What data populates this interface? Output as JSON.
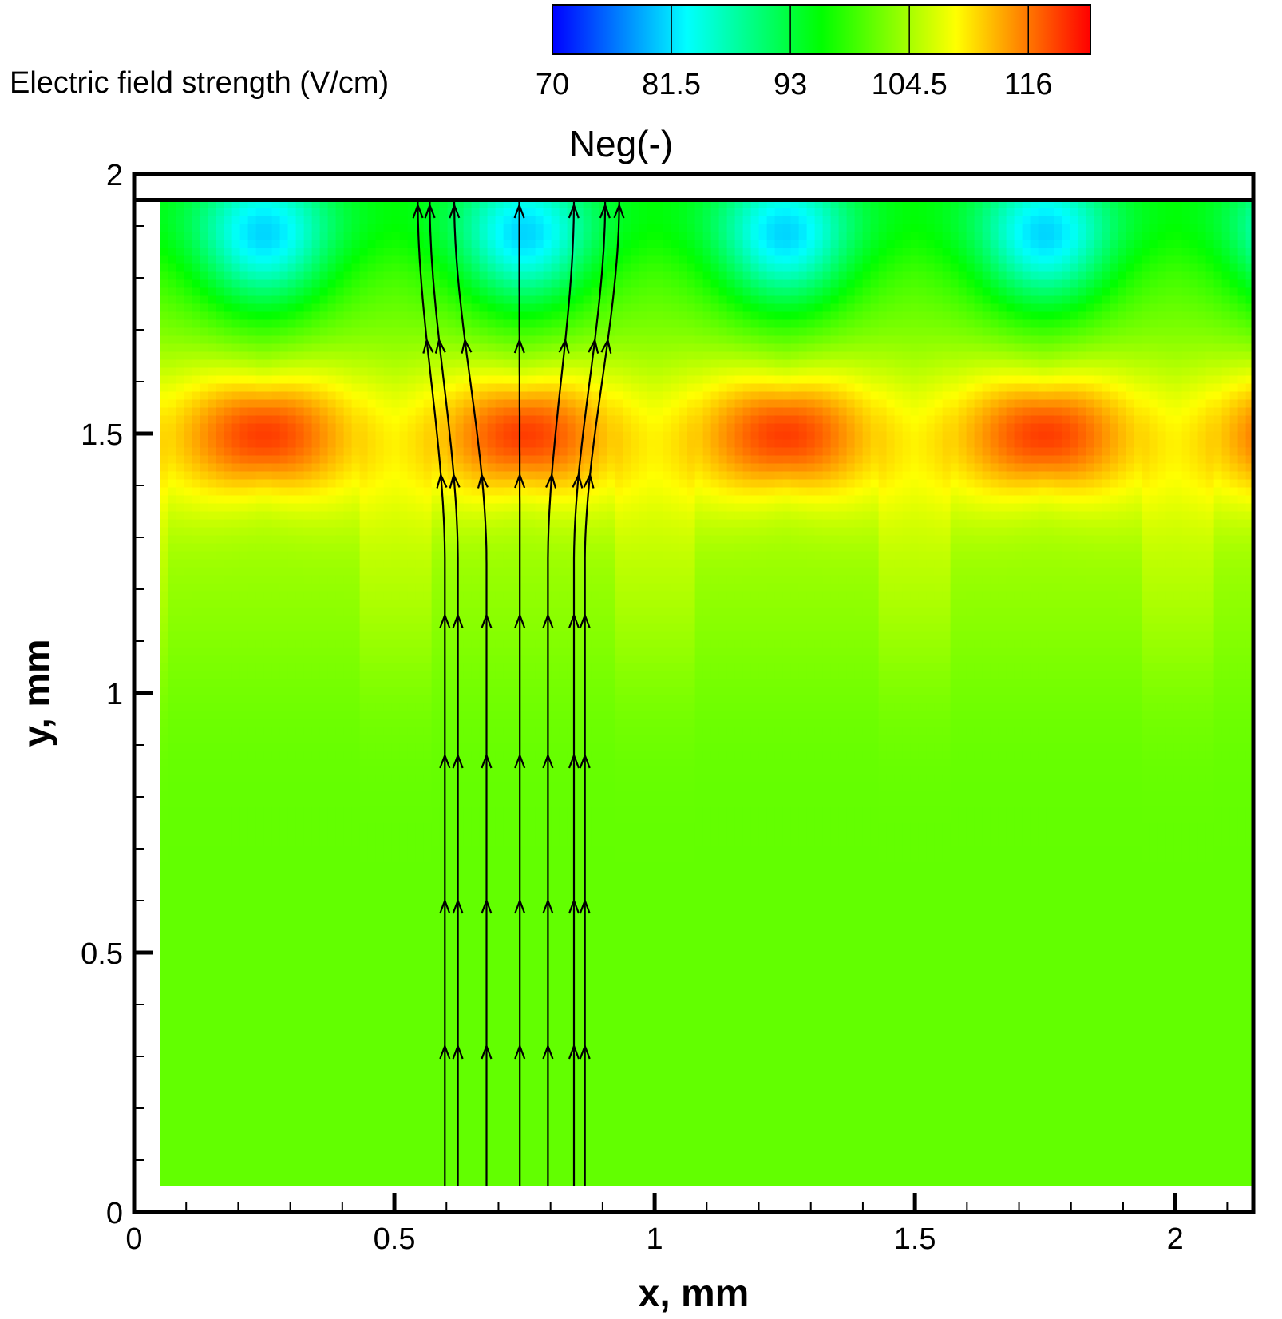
{
  "chart_data": {
    "type": "heatmap",
    "title": "Neg(-)",
    "xlabel": "x, mm",
    "ylabel": "y, mm",
    "xlim": [
      0,
      2.15
    ],
    "ylim": [
      0,
      2
    ],
    "domain_x": [
      0.05,
      2.15
    ],
    "domain_y": [
      0.05,
      1.95
    ],
    "x_ticks": [
      {
        "value": 0,
        "label": "0"
      },
      {
        "value": 0.5,
        "label": "0.5"
      },
      {
        "value": 1,
        "label": "1"
      },
      {
        "value": 1.5,
        "label": "1.5"
      },
      {
        "value": 2,
        "label": "2"
      }
    ],
    "y_ticks": [
      {
        "value": 0,
        "label": "0"
      },
      {
        "value": 0.5,
        "label": "0.5"
      },
      {
        "value": 1,
        "label": "1"
      },
      {
        "value": 1.5,
        "label": "1.5"
      },
      {
        "value": 2,
        "label": "2"
      }
    ],
    "colorbar": {
      "label": "Electric field strength (V/cm)",
      "min": 70,
      "max": 122,
      "ticks": [
        {
          "value": 70,
          "label": "70"
        },
        {
          "value": 81.5,
          "label": "81.5"
        },
        {
          "value": 93,
          "label": "93"
        },
        {
          "value": 104.5,
          "label": "104.5"
        },
        {
          "value": 116,
          "label": "116"
        }
      ],
      "colors": [
        "#0000ff",
        "#00ffff",
        "#00ff00",
        "#ffff00",
        "#ff0000"
      ]
    },
    "field_features": {
      "maxima_centers_x": [
        0.25,
        0.75,
        1.25,
        1.75
      ],
      "peak_y": 1.5,
      "peak_value": 118,
      "top_minimum_value": 86,
      "top_minimum_y": 1.87,
      "bulk_value": 101
    },
    "streamlines": [
      {
        "x0": 0.597,
        "xtop": 0.545
      },
      {
        "x0": 0.622,
        "xtop": 0.568
      },
      {
        "x0": 0.677,
        "xtop": 0.615
      },
      {
        "x0": 0.741,
        "xtop": 0.74
      },
      {
        "x0": 0.795,
        "xtop": 0.845
      },
      {
        "x0": 0.845,
        "xtop": 0.905
      },
      {
        "x0": 0.866,
        "xtop": 0.932
      }
    ],
    "streamline_arrow_y": [
      0.32,
      0.6,
      0.88,
      1.15,
      1.42,
      1.68,
      1.94
    ]
  }
}
